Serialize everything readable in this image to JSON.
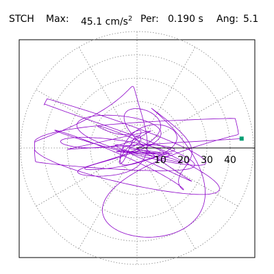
{
  "header": {
    "station": "STCH",
    "max_label": "Max:",
    "max_value": "45.1",
    "max_unit": "cm/s",
    "max_unit_exp": "2",
    "per_label": "Per:",
    "per_value": "0.190 s",
    "ang_label": "Ang:",
    "ang_value": "5.1"
  },
  "colors": {
    "trace": "#8B00C8",
    "marker": "#009E73",
    "grid": "#808080",
    "frame": "#000000"
  },
  "chart_data": {
    "type": "polar-orbit",
    "title": "STCH  Max: 45.1 cm/s2  Per: 0.190 s  Ang: 5.1",
    "r_max": 50,
    "rings": [
      10,
      20,
      30,
      40,
      50
    ],
    "tick_labels": [
      "10",
      "20",
      "30",
      "40"
    ],
    "spoke_step_deg": 30,
    "max_point": {
      "r": 45.1,
      "angle_deg": 5.1
    },
    "orbit": {
      "seed": 7,
      "points": 2400
    }
  }
}
